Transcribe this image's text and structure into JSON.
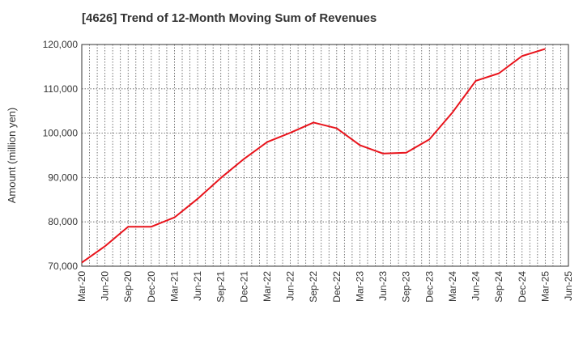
{
  "title": "[4626]  Trend of 12-Month Moving Sum of Revenues",
  "chart_data": {
    "type": "line",
    "title": "[4626]  Trend of 12-Month Moving Sum of Revenues",
    "xlabel": "",
    "ylabel": "Amount (million yen)",
    "ylim": [
      70000,
      120000
    ],
    "yticks": [
      70000,
      80000,
      90000,
      100000,
      110000,
      120000
    ],
    "ytick_labels": [
      "70,000",
      "80,000",
      "90,000",
      "100,000",
      "110,000",
      "120,000"
    ],
    "xtick_labels": [
      "Mar-20",
      "Jun-20",
      "Sep-20",
      "Dec-20",
      "Mar-21",
      "Jun-21",
      "Sep-21",
      "Dec-21",
      "Mar-22",
      "Jun-22",
      "Sep-22",
      "Dec-22",
      "Mar-23",
      "Jun-23",
      "Sep-23",
      "Dec-23",
      "Mar-24",
      "Jun-24",
      "Sep-24",
      "Dec-24",
      "Mar-25",
      "Jun-25"
    ],
    "grid": true,
    "series": [
      {
        "color": "#e8141c",
        "x": [
          "Mar-20",
          "Jun-20",
          "Sep-20",
          "Dec-20",
          "Mar-21",
          "Jun-21",
          "Sep-21",
          "Dec-21",
          "Mar-22",
          "Jun-22",
          "Sep-22",
          "Dec-22",
          "Mar-23",
          "Jun-23",
          "Sep-23",
          "Dec-23",
          "Mar-24",
          "Jun-24",
          "Sep-24",
          "Dec-24",
          "Mar-25"
        ],
        "values": [
          70800,
          74500,
          78900,
          78900,
          81000,
          85200,
          89900,
          94200,
          98000,
          100100,
          102400,
          101100,
          97300,
          95400,
          95600,
          98600,
          104700,
          111800,
          113500,
          117400,
          119000
        ]
      }
    ]
  }
}
